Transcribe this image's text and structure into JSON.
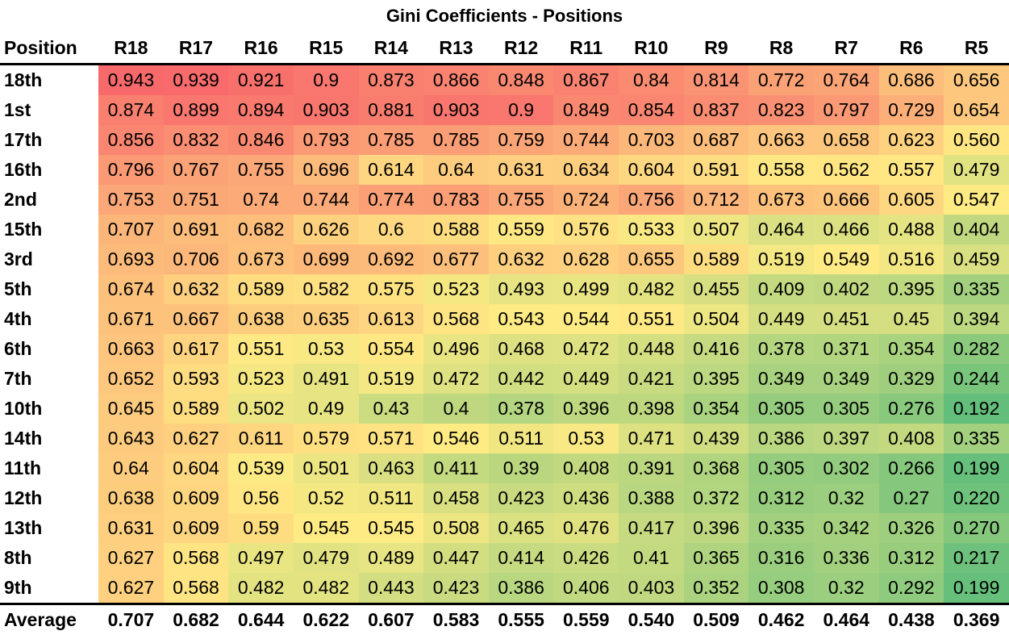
{
  "chart_data": {
    "type": "heatmap",
    "title": "Gini Coefficients - Positions",
    "row_header_label": "Position",
    "columns": [
      "R18",
      "R17",
      "R16",
      "R15",
      "R14",
      "R13",
      "R12",
      "R11",
      "R10",
      "R9",
      "R8",
      "R7",
      "R6",
      "R5"
    ],
    "rows": [
      {
        "label": "18th",
        "values": [
          "0.943",
          "0.939",
          "0.921",
          "0.9",
          "0.873",
          "0.866",
          "0.848",
          "0.867",
          "0.84",
          "0.814",
          "0.772",
          "0.764",
          "0.686",
          "0.656"
        ]
      },
      {
        "label": "1st",
        "values": [
          "0.874",
          "0.899",
          "0.894",
          "0.903",
          "0.881",
          "0.903",
          "0.9",
          "0.849",
          "0.854",
          "0.837",
          "0.823",
          "0.797",
          "0.729",
          "0.654"
        ]
      },
      {
        "label": "17th",
        "values": [
          "0.856",
          "0.832",
          "0.846",
          "0.793",
          "0.785",
          "0.785",
          "0.759",
          "0.744",
          "0.703",
          "0.687",
          "0.663",
          "0.658",
          "0.623",
          "0.560"
        ]
      },
      {
        "label": "16th",
        "values": [
          "0.796",
          "0.767",
          "0.755",
          "0.696",
          "0.614",
          "0.64",
          "0.631",
          "0.634",
          "0.604",
          "0.591",
          "0.558",
          "0.562",
          "0.557",
          "0.479"
        ]
      },
      {
        "label": "2nd",
        "values": [
          "0.753",
          "0.751",
          "0.74",
          "0.744",
          "0.774",
          "0.783",
          "0.755",
          "0.724",
          "0.756",
          "0.712",
          "0.673",
          "0.666",
          "0.605",
          "0.547"
        ]
      },
      {
        "label": "15th",
        "values": [
          "0.707",
          "0.691",
          "0.682",
          "0.626",
          "0.6",
          "0.588",
          "0.559",
          "0.576",
          "0.533",
          "0.507",
          "0.464",
          "0.466",
          "0.488",
          "0.404"
        ]
      },
      {
        "label": "3rd",
        "values": [
          "0.693",
          "0.706",
          "0.673",
          "0.699",
          "0.692",
          "0.677",
          "0.632",
          "0.628",
          "0.655",
          "0.589",
          "0.519",
          "0.549",
          "0.516",
          "0.459"
        ]
      },
      {
        "label": "5th",
        "values": [
          "0.674",
          "0.632",
          "0.589",
          "0.582",
          "0.575",
          "0.523",
          "0.493",
          "0.499",
          "0.482",
          "0.455",
          "0.409",
          "0.402",
          "0.395",
          "0.335"
        ]
      },
      {
        "label": "4th",
        "values": [
          "0.671",
          "0.667",
          "0.638",
          "0.635",
          "0.613",
          "0.568",
          "0.543",
          "0.544",
          "0.551",
          "0.504",
          "0.449",
          "0.451",
          "0.45",
          "0.394"
        ]
      },
      {
        "label": "6th",
        "values": [
          "0.663",
          "0.617",
          "0.551",
          "0.53",
          "0.554",
          "0.496",
          "0.468",
          "0.472",
          "0.448",
          "0.416",
          "0.378",
          "0.371",
          "0.354",
          "0.282"
        ]
      },
      {
        "label": "7th",
        "values": [
          "0.652",
          "0.593",
          "0.523",
          "0.491",
          "0.519",
          "0.472",
          "0.442",
          "0.449",
          "0.421",
          "0.395",
          "0.349",
          "0.349",
          "0.329",
          "0.244"
        ]
      },
      {
        "label": "10th",
        "values": [
          "0.645",
          "0.589",
          "0.502",
          "0.49",
          "0.43",
          "0.4",
          "0.378",
          "0.396",
          "0.398",
          "0.354",
          "0.305",
          "0.305",
          "0.276",
          "0.192"
        ]
      },
      {
        "label": "14th",
        "values": [
          "0.643",
          "0.627",
          "0.611",
          "0.579",
          "0.571",
          "0.546",
          "0.511",
          "0.53",
          "0.471",
          "0.439",
          "0.386",
          "0.397",
          "0.408",
          "0.335"
        ]
      },
      {
        "label": "11th",
        "values": [
          "0.64",
          "0.604",
          "0.539",
          "0.501",
          "0.463",
          "0.411",
          "0.39",
          "0.408",
          "0.391",
          "0.368",
          "0.305",
          "0.302",
          "0.266",
          "0.199"
        ]
      },
      {
        "label": "12th",
        "values": [
          "0.638",
          "0.609",
          "0.56",
          "0.52",
          "0.511",
          "0.458",
          "0.423",
          "0.436",
          "0.388",
          "0.372",
          "0.312",
          "0.32",
          "0.27",
          "0.220"
        ]
      },
      {
        "label": "13th",
        "values": [
          "0.631",
          "0.609",
          "0.59",
          "0.545",
          "0.545",
          "0.508",
          "0.465",
          "0.476",
          "0.417",
          "0.396",
          "0.335",
          "0.342",
          "0.326",
          "0.270"
        ]
      },
      {
        "label": "8th",
        "values": [
          "0.627",
          "0.568",
          "0.497",
          "0.479",
          "0.489",
          "0.447",
          "0.414",
          "0.426",
          "0.41",
          "0.365",
          "0.316",
          "0.336",
          "0.312",
          "0.217"
        ]
      },
      {
        "label": "9th",
        "values": [
          "0.627",
          "0.568",
          "0.482",
          "0.482",
          "0.443",
          "0.423",
          "0.386",
          "0.406",
          "0.403",
          "0.352",
          "0.308",
          "0.32",
          "0.292",
          "0.199"
        ]
      }
    ],
    "average": {
      "label": "Average",
      "values": [
        "0.707",
        "0.682",
        "0.644",
        "0.622",
        "0.607",
        "0.583",
        "0.555",
        "0.559",
        "0.540",
        "0.509",
        "0.462",
        "0.464",
        "0.438",
        "0.369"
      ]
    },
    "color_scale": {
      "low": "#63be7b",
      "mid": "#ffeb84",
      "high": "#f8696b"
    }
  }
}
